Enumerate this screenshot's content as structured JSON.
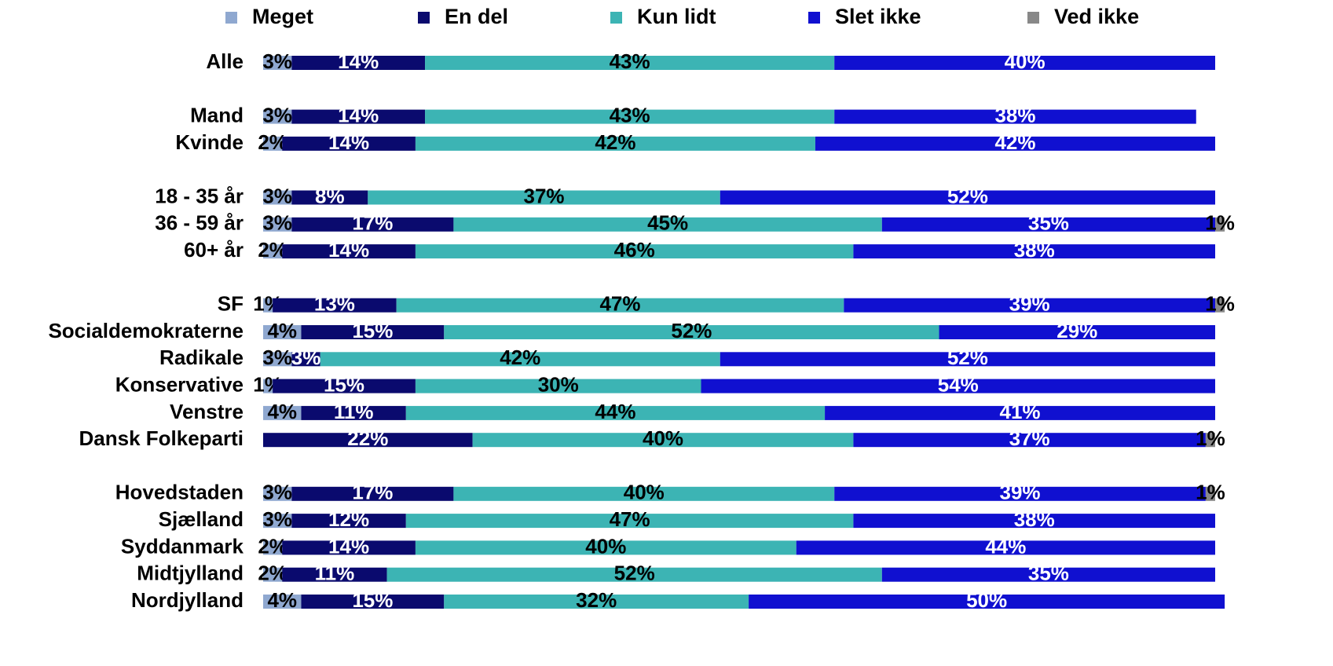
{
  "chart_data": {
    "type": "stacked-bar-horizontal",
    "categories": [
      "Alle",
      null,
      "Mand",
      "Kvinde",
      null,
      "18 - 35 år",
      "36 - 59 år",
      "60+ år",
      null,
      "SF",
      "Socialdemokraterne",
      "Radikale",
      "Konservative",
      "Venstre",
      "Dansk Folkeparti",
      null,
      "Hovedstaden",
      "Sjælland",
      "Syddanmark",
      "Midtjylland",
      "Nordjylland"
    ],
    "xlim": [
      0,
      100
    ],
    "legend": "top",
    "series": [
      {
        "name": "Meget",
        "color": "#8fa8d0",
        "label_color": "#000000",
        "values": [
          3,
          null,
          3,
          2,
          null,
          3,
          3,
          2,
          null,
          1,
          4,
          3,
          1,
          4,
          0,
          null,
          3,
          3,
          2,
          2,
          4
        ],
        "value_labels": [
          "3%",
          null,
          "3%",
          "2%",
          null,
          "3%",
          "3%",
          "2%",
          null,
          "1%",
          "4%",
          "3%",
          "1%",
          "4%",
          null,
          null,
          "3%",
          "3%",
          "2%",
          "2%",
          "4%"
        ]
      },
      {
        "name": "En del",
        "color": "#0a0a6e",
        "label_color": "#ffffff",
        "values": [
          14,
          null,
          14,
          14,
          null,
          8,
          17,
          14,
          null,
          13,
          15,
          3,
          15,
          11,
          22,
          null,
          17,
          12,
          14,
          11,
          15
        ],
        "value_labels": [
          "14%",
          null,
          "14%",
          "14%",
          null,
          "8%",
          "17%",
          "14%",
          null,
          "13%",
          "15%",
          "3%",
          "15%",
          "11%",
          "22%",
          null,
          "17%",
          "12%",
          "14%",
          "11%",
          "15%"
        ]
      },
      {
        "name": "Kun lidt",
        "color": "#3cb4b4",
        "label_color": "#000000",
        "values": [
          43,
          null,
          43,
          42,
          null,
          37,
          45,
          46,
          null,
          47,
          52,
          42,
          30,
          44,
          40,
          null,
          40,
          47,
          40,
          52,
          32
        ],
        "value_labels": [
          "43%",
          null,
          "43%",
          "42%",
          null,
          "37%",
          "45%",
          "46%",
          null,
          "47%",
          "52%",
          "42%",
          "30%",
          "44%",
          "40%",
          null,
          "40%",
          "47%",
          "40%",
          "52%",
          "32%"
        ]
      },
      {
        "name": "Slet ikke",
        "color": "#1010d0",
        "label_color": "#ffffff",
        "values": [
          40,
          null,
          38,
          42,
          null,
          52,
          35,
          38,
          null,
          39,
          29,
          52,
          54,
          41,
          37,
          null,
          39,
          38,
          44,
          35,
          50
        ],
        "value_labels": [
          "40%",
          null,
          "38%",
          "42%",
          null,
          "52%",
          "35%",
          "38%",
          null,
          "39%",
          "29%",
          "52%",
          "54%",
          "41%",
          "37%",
          null,
          "39%",
          "38%",
          "44%",
          "35%",
          "50%"
        ]
      },
      {
        "name": "Ved ikke",
        "color": "#888888",
        "label_color": "#000000",
        "values": [
          0,
          null,
          0,
          0,
          null,
          0,
          1,
          0,
          null,
          1,
          0,
          0,
          0,
          0,
          1,
          null,
          1,
          0,
          0,
          0,
          0
        ],
        "value_labels": [
          null,
          null,
          null,
          null,
          null,
          null,
          "1%",
          null,
          null,
          "1%",
          null,
          null,
          null,
          null,
          "1%",
          null,
          "1%",
          null,
          null,
          null,
          null
        ]
      }
    ]
  }
}
